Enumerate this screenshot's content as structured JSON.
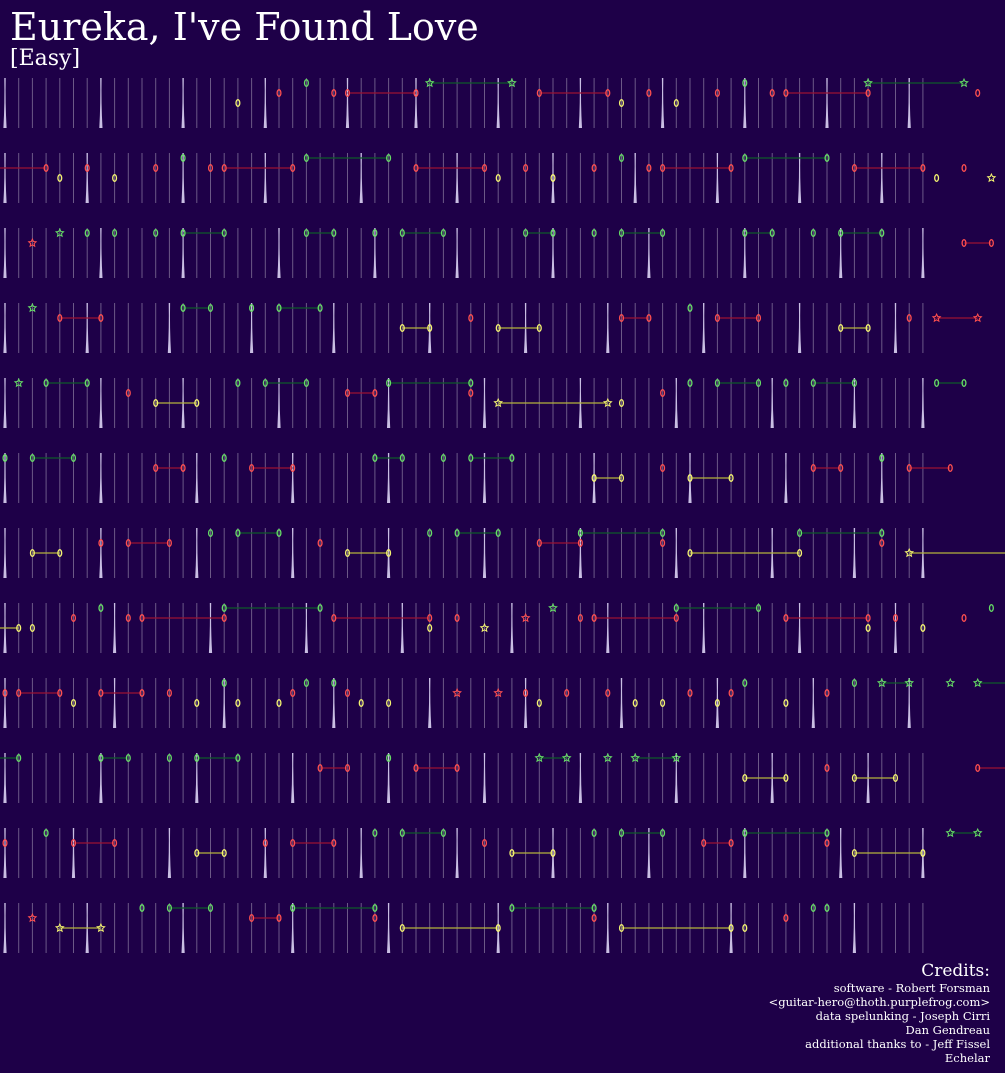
{
  "title": "Eureka, I've Found Love",
  "difficulty": "[Easy]",
  "colors": {
    "background": "#1e0048",
    "beat_line": "#ffffff",
    "green_note": "#66dd66",
    "green_sustain": "#0f5a2a",
    "red_note": "#ff4f4f",
    "red_sustain": "#9a1232",
    "yellow_note": "#f4f470",
    "yellow_sustain": "#b4b43c"
  },
  "credits": {
    "heading": "Credits:",
    "lines": [
      "software - Robert Forsman",
      "<guitar-hero@thoth.purplefrog.com>",
      "data spelunking - Joseph Cirri",
      "Dan Gendreau",
      "additional thanks to - Jeff Fissel",
      "Echelar"
    ]
  },
  "chart_data": {
    "type": "note-chart",
    "lanes": [
      "green",
      "red",
      "yellow"
    ],
    "rows": [
      {
        "beats": 68,
        "strong": [
          0,
          7,
          13,
          19,
          25,
          30,
          36,
          42,
          48,
          54,
          60,
          66
        ],
        "notes": [
          [
            "yellow",
            17
          ],
          [
            "red",
            20
          ],
          [
            "green",
            22
          ],
          [
            "red",
            24
          ],
          [
            "red",
            25,
            30
          ],
          [
            "green",
            31,
            37,
            "star"
          ],
          [
            "red",
            39,
            44
          ],
          [
            "yellow",
            45
          ],
          [
            "red",
            47
          ],
          [
            "yellow",
            49
          ],
          [
            "red",
            52
          ],
          [
            "green",
            54
          ],
          [
            "red",
            56
          ],
          [
            "red",
            57,
            63
          ],
          [
            "green",
            63,
            70,
            "star"
          ],
          [
            "red",
            71
          ]
        ]
      },
      {
        "beats": 68,
        "strong": [
          0,
          6,
          13,
          19,
          26,
          33,
          40,
          46,
          52,
          58,
          64
        ],
        "notes": [
          [
            "red",
            -3,
            3
          ],
          [
            "yellow",
            4
          ],
          [
            "red",
            6
          ],
          [
            "yellow",
            8
          ],
          [
            "red",
            11
          ],
          [
            "green",
            13
          ],
          [
            "red",
            15
          ],
          [
            "red",
            16,
            21
          ],
          [
            "green",
            22,
            28
          ],
          [
            "red",
            30,
            35
          ],
          [
            "yellow",
            36
          ],
          [
            "red",
            38
          ],
          [
            "yellow",
            40
          ],
          [
            "red",
            43
          ],
          [
            "green",
            45
          ],
          [
            "red",
            47
          ],
          [
            "red",
            48,
            53
          ],
          [
            "green",
            54,
            60
          ],
          [
            "red",
            62,
            67
          ],
          [
            "yellow",
            68
          ],
          [
            "red",
            70
          ],
          [
            "yellow",
            72,
            "star"
          ]
        ]
      },
      {
        "beats": 68,
        "strong": [
          0,
          7,
          13,
          20,
          27,
          33,
          40,
          47,
          54,
          61,
          67
        ],
        "notes": [
          [
            "red",
            2,
            "star"
          ],
          [
            "green",
            4,
            "star"
          ],
          [
            "green",
            6
          ],
          [
            "green",
            8
          ],
          [
            "green",
            11
          ],
          [
            "green",
            13,
            16
          ],
          [
            "green",
            22,
            24
          ],
          [
            "green",
            27
          ],
          [
            "green",
            29,
            32
          ],
          [
            "green",
            38,
            40
          ],
          [
            "green",
            43
          ],
          [
            "green",
            45,
            48
          ],
          [
            "green",
            54,
            56
          ],
          [
            "green",
            59
          ],
          [
            "green",
            61,
            64
          ],
          [
            "red",
            70,
            72
          ]
        ]
      },
      {
        "beats": 68,
        "strong": [
          0,
          6,
          12,
          18,
          24,
          31,
          38,
          44,
          51,
          58,
          65
        ],
        "notes": [
          [
            "green",
            2,
            "star"
          ],
          [
            "red",
            4,
            7
          ],
          [
            "green",
            13,
            15
          ],
          [
            "green",
            18
          ],
          [
            "green",
            20,
            23
          ],
          [
            "yellow",
            29,
            31
          ],
          [
            "red",
            34
          ],
          [
            "yellow",
            36,
            39
          ],
          [
            "red",
            45,
            47
          ],
          [
            "green",
            50
          ],
          [
            "red",
            52,
            55
          ],
          [
            "yellow",
            61,
            63
          ],
          [
            "red",
            66
          ],
          [
            "red",
            68,
            71,
            "star"
          ]
        ]
      },
      {
        "beats": 68,
        "strong": [
          0,
          7,
          13,
          20,
          28,
          35,
          42,
          49,
          56,
          62,
          67
        ],
        "notes": [
          [
            "green",
            1,
            "star"
          ],
          [
            "green",
            3,
            6
          ],
          [
            "red",
            9
          ],
          [
            "yellow",
            11,
            14
          ],
          [
            "green",
            17
          ],
          [
            "green",
            19,
            22
          ],
          [
            "red",
            25,
            27
          ],
          [
            "green",
            28,
            34
          ],
          [
            "red",
            34
          ],
          [
            "yellow",
            36,
            44,
            "star"
          ],
          [
            "yellow",
            45
          ],
          [
            "red",
            48
          ],
          [
            "green",
            50
          ],
          [
            "green",
            52,
            55
          ],
          [
            "green",
            57
          ],
          [
            "green",
            59,
            62
          ],
          [
            "green",
            68,
            70
          ]
        ]
      },
      {
        "beats": 68,
        "strong": [
          0,
          7,
          14,
          21,
          28,
          35,
          43,
          50,
          57,
          64
        ],
        "notes": [
          [
            "green",
            0
          ],
          [
            "green",
            2,
            5
          ],
          [
            "red",
            11,
            13
          ],
          [
            "green",
            16
          ],
          [
            "red",
            18,
            21
          ],
          [
            "green",
            27,
            29
          ],
          [
            "green",
            32
          ],
          [
            "green",
            34,
            37
          ],
          [
            "yellow",
            43,
            45
          ],
          [
            "red",
            48
          ],
          [
            "yellow",
            50,
            53
          ],
          [
            "red",
            59,
            61
          ],
          [
            "green",
            64
          ],
          [
            "red",
            66,
            69
          ]
        ]
      },
      {
        "beats": 68,
        "strong": [
          0,
          7,
          14,
          21,
          28,
          35,
          42,
          49,
          56,
          62,
          67
        ],
        "notes": [
          [
            "yellow",
            2,
            4
          ],
          [
            "red",
            7
          ],
          [
            "red",
            9,
            12
          ],
          [
            "green",
            15
          ],
          [
            "green",
            17,
            20
          ],
          [
            "red",
            23
          ],
          [
            "yellow",
            25,
            28
          ],
          [
            "green",
            31
          ],
          [
            "green",
            33,
            36
          ],
          [
            "red",
            39,
            42
          ],
          [
            "green",
            42,
            48
          ],
          [
            "red",
            48
          ],
          [
            "yellow",
            50,
            58
          ],
          [
            "green",
            58,
            64
          ],
          [
            "red",
            64
          ],
          [
            "yellow",
            66,
            76,
            "star"
          ]
        ]
      },
      {
        "beats": 68,
        "strong": [
          0,
          8,
          15,
          22,
          29,
          37,
          44,
          51,
          58,
          65
        ],
        "notes": [
          [
            "yellow",
            -4,
            1
          ],
          [
            "yellow",
            2
          ],
          [
            "red",
            5
          ],
          [
            "green",
            7
          ],
          [
            "red",
            9
          ],
          [
            "red",
            10,
            16
          ],
          [
            "green",
            16,
            23
          ],
          [
            "red",
            24,
            31
          ],
          [
            "yellow",
            31
          ],
          [
            "red",
            33
          ],
          [
            "yellow",
            35,
            "star"
          ],
          [
            "red",
            38,
            "star"
          ],
          [
            "green",
            40,
            "star"
          ],
          [
            "red",
            42
          ],
          [
            "red",
            43,
            49
          ],
          [
            "green",
            49,
            55
          ],
          [
            "red",
            57,
            63
          ],
          [
            "yellow",
            63
          ],
          [
            "red",
            65
          ],
          [
            "yellow",
            67
          ],
          [
            "red",
            70
          ],
          [
            "green",
            72
          ]
        ]
      },
      {
        "beats": 68,
        "strong": [
          0,
          8,
          16,
          24,
          31,
          38,
          45,
          52,
          59,
          66
        ],
        "notes": [
          [
            "red",
            0
          ],
          [
            "red",
            1,
            4
          ],
          [
            "yellow",
            5
          ],
          [
            "red",
            7,
            10
          ],
          [
            "red",
            12
          ],
          [
            "yellow",
            14
          ],
          [
            "green",
            16
          ],
          [
            "yellow",
            17
          ],
          [
            "yellow",
            20
          ],
          [
            "red",
            21
          ],
          [
            "green",
            22
          ],
          [
            "green",
            24
          ],
          [
            "red",
            25
          ],
          [
            "yellow",
            26
          ],
          [
            "yellow",
            28
          ],
          [
            "red",
            33,
            "star"
          ],
          [
            "red",
            36,
            "star"
          ],
          [
            "red",
            38
          ],
          [
            "yellow",
            39
          ],
          [
            "red",
            41
          ],
          [
            "red",
            44
          ],
          [
            "yellow",
            46
          ],
          [
            "yellow",
            48
          ],
          [
            "red",
            50
          ],
          [
            "yellow",
            52
          ],
          [
            "red",
            53
          ],
          [
            "green",
            54
          ],
          [
            "yellow",
            57
          ],
          [
            "red",
            60
          ],
          [
            "green",
            62
          ],
          [
            "green",
            64,
            66,
            "star"
          ],
          [
            "green",
            69,
            "star"
          ],
          [
            "green",
            71,
            74,
            "star"
          ]
        ]
      },
      {
        "beats": 68,
        "strong": [
          0,
          7,
          14,
          21,
          28,
          35,
          42,
          49,
          56,
          63
        ],
        "notes": [
          [
            "green",
            -4,
            1
          ],
          [
            "green",
            7,
            9
          ],
          [
            "green",
            12
          ],
          [
            "green",
            14,
            17
          ],
          [
            "red",
            23,
            25
          ],
          [
            "green",
            28
          ],
          [
            "red",
            30,
            33
          ],
          [
            "green",
            39,
            41,
            "star"
          ],
          [
            "green",
            44,
            "star"
          ],
          [
            "green",
            46,
            49,
            "star"
          ],
          [
            "yellow",
            54,
            57
          ],
          [
            "red",
            60
          ],
          [
            "yellow",
            62,
            65
          ],
          [
            "red",
            71,
            74
          ]
        ]
      },
      {
        "beats": 68,
        "strong": [
          0,
          5,
          12,
          19,
          26,
          33,
          40,
          47,
          54,
          61,
          67
        ],
        "notes": [
          [
            "red",
            0
          ],
          [
            "green",
            3
          ],
          [
            "red",
            5,
            8
          ],
          [
            "yellow",
            14,
            16
          ],
          [
            "red",
            19
          ],
          [
            "red",
            21,
            24
          ],
          [
            "green",
            27
          ],
          [
            "green",
            29,
            32
          ],
          [
            "red",
            35
          ],
          [
            "yellow",
            37,
            40
          ],
          [
            "green",
            43
          ],
          [
            "green",
            45,
            48
          ],
          [
            "red",
            51,
            53
          ],
          [
            "green",
            54,
            60
          ],
          [
            "red",
            60
          ],
          [
            "yellow",
            62,
            67
          ],
          [
            "green",
            69,
            71,
            "star"
          ]
        ]
      },
      {
        "beats": 68,
        "strong": [
          0,
          6,
          13,
          21,
          28,
          36,
          44,
          53,
          62
        ],
        "notes": [
          [
            "red",
            2,
            "star"
          ],
          [
            "yellow",
            4,
            7,
            "star"
          ],
          [
            "green",
            10
          ],
          [
            "green",
            12,
            15
          ],
          [
            "red",
            18,
            20
          ],
          [
            "green",
            21,
            27
          ],
          [
            "red",
            27
          ],
          [
            "yellow",
            29,
            36
          ],
          [
            "green",
            37,
            43
          ],
          [
            "red",
            43
          ],
          [
            "yellow",
            45,
            53
          ],
          [
            "yellow",
            54
          ],
          [
            "red",
            57
          ],
          [
            "green",
            59
          ],
          [
            "green",
            60
          ]
        ]
      }
    ]
  }
}
